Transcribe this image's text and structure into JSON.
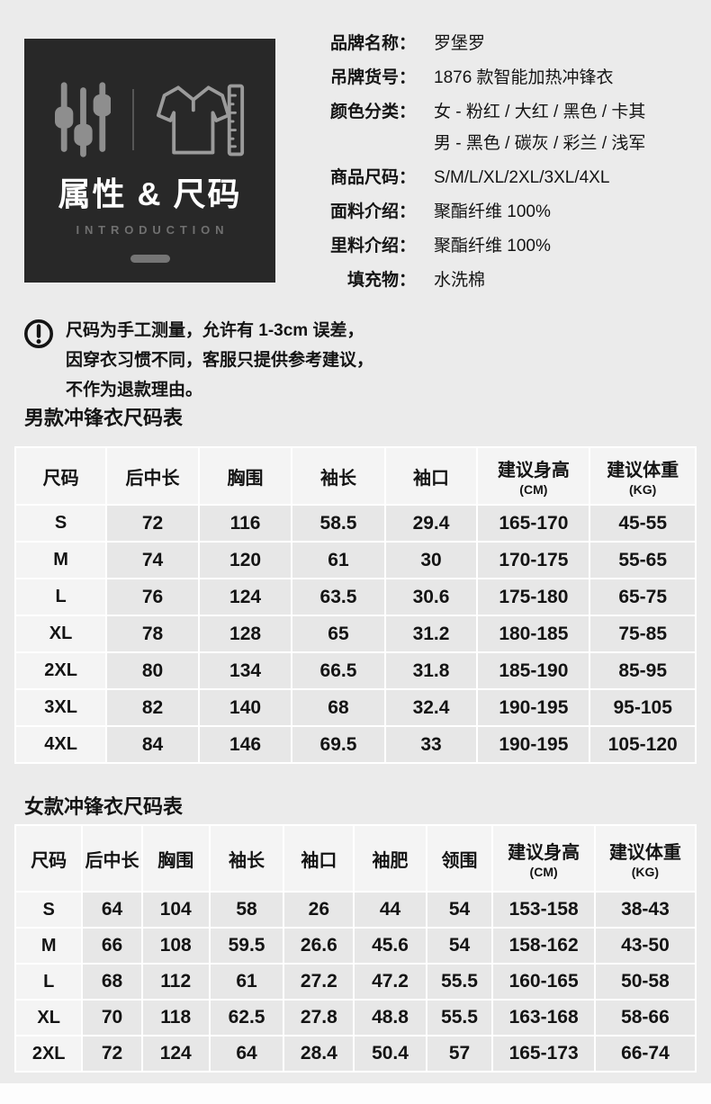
{
  "intro_card": {
    "title": "属性 & 尺码",
    "subtitle": "INTRODUCTION",
    "card_bg": "#282828",
    "icon_gray": "#8e8e8e"
  },
  "attributes": {
    "rows": [
      {
        "label": "品牌名称：",
        "values": [
          "罗堡罗"
        ]
      },
      {
        "label": "吊牌货号：",
        "values": [
          "1876 款智能加热冲锋衣"
        ]
      },
      {
        "label": "颜色分类：",
        "values": [
          "女 - 粉红 / 大红 / 黑色 / 卡其",
          "男 - 黑色 / 碳灰 / 彩兰 / 浅军"
        ]
      },
      {
        "label": "商品尺码：",
        "values": [
          "S/M/L/XL/2XL/3XL/4XL"
        ]
      },
      {
        "label": "面料介绍：",
        "values": [
          "聚酯纤维 100%"
        ]
      },
      {
        "label": "里料介绍：",
        "values": [
          "聚酯纤维 100%"
        ]
      },
      {
        "label": "填充物：",
        "values": [
          "水洗棉"
        ]
      }
    ]
  },
  "notice": {
    "lines": [
      "尺码为手工测量，允许有 1-3cm 误差，",
      "因穿衣习惯不同，客服只提供参考建议，",
      "不作为退款理由。"
    ]
  },
  "men_table": {
    "title": "男款冲锋衣尺码表",
    "columns": [
      {
        "label": "尺码",
        "sub": ""
      },
      {
        "label": "后中长",
        "sub": ""
      },
      {
        "label": "胸围",
        "sub": ""
      },
      {
        "label": "袖长",
        "sub": ""
      },
      {
        "label": "袖口",
        "sub": ""
      },
      {
        "label": "建议身高",
        "sub": "(CM)"
      },
      {
        "label": "建议体重",
        "sub": "(KG)"
      }
    ],
    "rows": [
      [
        "S",
        "72",
        "116",
        "58.5",
        "29.4",
        "165-170",
        "45-55"
      ],
      [
        "M",
        "74",
        "120",
        "61",
        "30",
        "170-175",
        "55-65"
      ],
      [
        "L",
        "76",
        "124",
        "63.5",
        "30.6",
        "175-180",
        "65-75"
      ],
      [
        "XL",
        "78",
        "128",
        "65",
        "31.2",
        "180-185",
        "75-85"
      ],
      [
        "2XL",
        "80",
        "134",
        "66.5",
        "31.8",
        "185-190",
        "85-95"
      ],
      [
        "3XL",
        "82",
        "140",
        "68",
        "32.4",
        "190-195",
        "95-105"
      ],
      [
        "4XL",
        "84",
        "146",
        "69.5",
        "33",
        "190-195",
        "105-120"
      ]
    ]
  },
  "women_table": {
    "title": "女款冲锋衣尺码表",
    "columns": [
      {
        "label": "尺码",
        "sub": ""
      },
      {
        "label": "后中长",
        "sub": ""
      },
      {
        "label": "胸围",
        "sub": ""
      },
      {
        "label": "袖长",
        "sub": ""
      },
      {
        "label": "袖口",
        "sub": ""
      },
      {
        "label": "袖肥",
        "sub": ""
      },
      {
        "label": "领围",
        "sub": ""
      },
      {
        "label": "建议身高",
        "sub": "(CM)"
      },
      {
        "label": "建议体重",
        "sub": "(KG)"
      }
    ],
    "rows": [
      [
        "S",
        "64",
        "104",
        "58",
        "26",
        "44",
        "54",
        "153-158",
        "38-43"
      ],
      [
        "M",
        "66",
        "108",
        "59.5",
        "26.6",
        "45.6",
        "54",
        "158-162",
        "43-50"
      ],
      [
        "L",
        "68",
        "112",
        "61",
        "27.2",
        "47.2",
        "55.5",
        "160-165",
        "50-58"
      ],
      [
        "XL",
        "70",
        "118",
        "62.5",
        "27.8",
        "48.8",
        "55.5",
        "163-168",
        "58-66"
      ],
      [
        "2XL",
        "72",
        "124",
        "64",
        "28.4",
        "50.4",
        "57",
        "165-173",
        "66-74"
      ]
    ]
  }
}
